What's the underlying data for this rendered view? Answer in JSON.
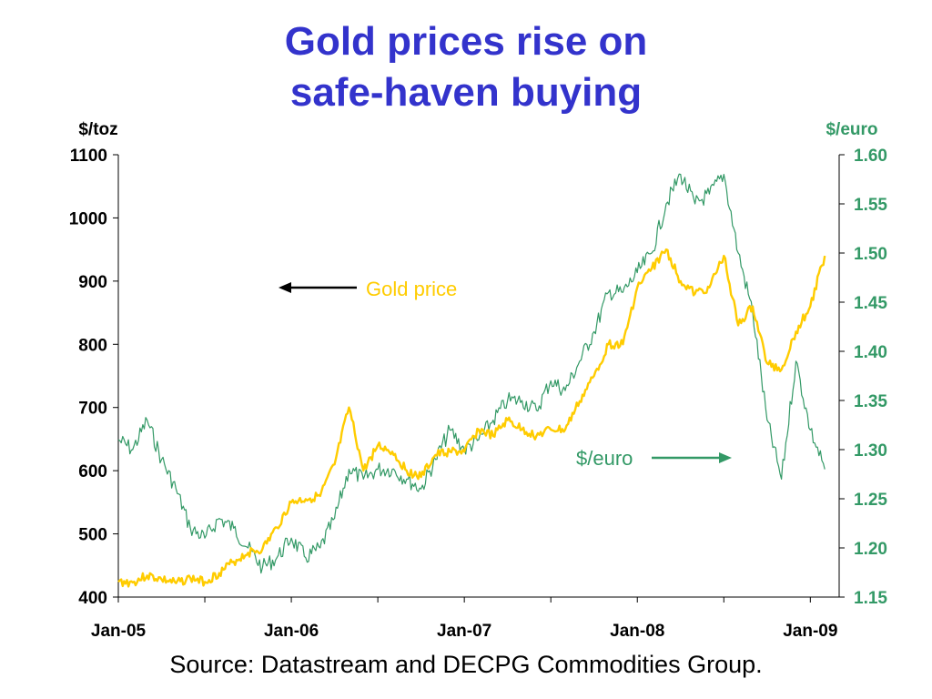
{
  "slide": {
    "title_line1": "Gold prices rise on",
    "title_line2": "safe-haven buying",
    "source": "Source: Datastream and DECPG Commodities Group."
  },
  "chart_data": {
    "type": "line",
    "left_axis": {
      "label": "$/toz",
      "ylim": [
        400,
        1100
      ],
      "ticks": [
        "400",
        "500",
        "600",
        "700",
        "800",
        "900",
        "1000",
        "1100"
      ]
    },
    "right_axis": {
      "label": "$/euro",
      "ylim": [
        1.15,
        1.6
      ],
      "ticks": [
        "1.15",
        "1.20",
        "1.25",
        "1.30",
        "1.35",
        "1.40",
        "1.45",
        "1.50",
        "1.55",
        "1.60"
      ]
    },
    "x_ticks": [
      "Jan-05",
      "Jan-06",
      "Jan-07",
      "Jan-08",
      "Jan-09"
    ],
    "xlim": [
      "2005-01",
      "2009-03"
    ],
    "grid": false,
    "colors": {
      "gold": "#ffcc00",
      "euro": "#339966",
      "title": "#3333cc",
      "right_axis": "#339966"
    },
    "annotations": {
      "gold_label": "Gold price",
      "euro_label": "$/euro"
    },
    "series": [
      {
        "name": "Gold price",
        "axis": "left",
        "x": [
          "2005-01",
          "2005-02",
          "2005-03",
          "2005-04",
          "2005-05",
          "2005-06",
          "2005-07",
          "2005-08",
          "2005-09",
          "2005-10",
          "2005-11",
          "2005-12",
          "2006-01",
          "2006-02",
          "2006-03",
          "2006-04",
          "2006-05",
          "2006-06",
          "2006-07",
          "2006-08",
          "2006-09",
          "2006-10",
          "2006-11",
          "2006-12",
          "2007-01",
          "2007-02",
          "2007-03",
          "2007-04",
          "2007-05",
          "2007-06",
          "2007-07",
          "2007-08",
          "2007-09",
          "2007-10",
          "2007-11",
          "2007-12",
          "2008-01",
          "2008-02",
          "2008-03",
          "2008-04",
          "2008-05",
          "2008-06",
          "2008-07",
          "2008-08",
          "2008-09",
          "2008-10",
          "2008-11",
          "2008-12",
          "2009-01",
          "2009-02"
        ],
        "values": [
          424,
          423,
          434,
          428,
          422,
          430,
          424,
          438,
          456,
          470,
          476,
          510,
          550,
          555,
          560,
          610,
          700,
          600,
          640,
          630,
          600,
          590,
          625,
          630,
          630,
          665,
          655,
          680,
          665,
          655,
          665,
          665,
          710,
          750,
          800,
          800,
          890,
          920,
          950,
          900,
          880,
          890,
          940,
          830,
          860,
          770,
          760,
          820,
          860,
          940
        ]
      },
      {
        "name": "$/euro",
        "axis": "right",
        "x": [
          "2005-01",
          "2005-02",
          "2005-03",
          "2005-04",
          "2005-05",
          "2005-06",
          "2005-07",
          "2005-08",
          "2005-09",
          "2005-10",
          "2005-11",
          "2005-12",
          "2006-01",
          "2006-02",
          "2006-03",
          "2006-04",
          "2006-05",
          "2006-06",
          "2006-07",
          "2006-08",
          "2006-09",
          "2006-10",
          "2006-11",
          "2006-12",
          "2007-01",
          "2007-02",
          "2007-03",
          "2007-04",
          "2007-05",
          "2007-06",
          "2007-07",
          "2007-08",
          "2007-09",
          "2007-10",
          "2007-11",
          "2007-12",
          "2008-01",
          "2008-02",
          "2008-03",
          "2008-04",
          "2008-05",
          "2008-06",
          "2008-07",
          "2008-08",
          "2008-09",
          "2008-10",
          "2008-11",
          "2008-12",
          "2009-01",
          "2009-02"
        ],
        "values": [
          1.31,
          1.3,
          1.33,
          1.29,
          1.26,
          1.22,
          1.21,
          1.23,
          1.22,
          1.2,
          1.18,
          1.19,
          1.21,
          1.19,
          1.2,
          1.23,
          1.28,
          1.27,
          1.28,
          1.28,
          1.27,
          1.26,
          1.29,
          1.32,
          1.3,
          1.31,
          1.33,
          1.35,
          1.35,
          1.34,
          1.37,
          1.36,
          1.39,
          1.42,
          1.46,
          1.46,
          1.48,
          1.5,
          1.55,
          1.58,
          1.55,
          1.56,
          1.58,
          1.5,
          1.44,
          1.33,
          1.27,
          1.39,
          1.32,
          1.28
        ]
      }
    ]
  }
}
